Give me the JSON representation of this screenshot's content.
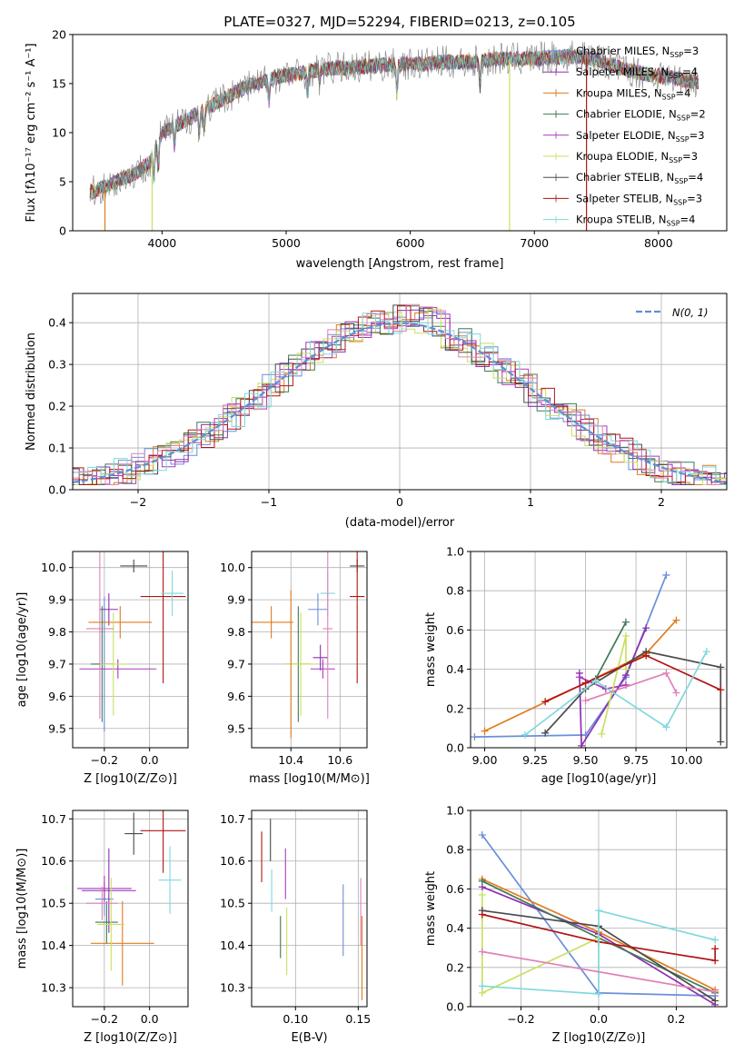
{
  "colors": {
    "chabrier_miles": "#6a8fd8",
    "salpeter_miles": "#8e2fb4",
    "kroupa_miles": "#e07b1f",
    "chabrier_elodie": "#3f7a55",
    "salpeter_elodie": "#a83ab8",
    "kroupa_elodie": "#c9e060",
    "chabrier_stelib": "#4a4a4a",
    "salpeter_stelib": "#b01515",
    "kroupa_stelib": "#7fd8dc",
    "pink": "#e080b8",
    "gaussian": "#5b8fd8",
    "grid": "#b0b0b0"
  },
  "chart_data": [
    {
      "id": "spectrum",
      "type": "line",
      "title": "PLATE=0327, MJD=52294, FIBERID=0213, z=0.105",
      "xlabel": "wavelength [Angstrom, rest frame]",
      "ylabel": "Flux [fλ10⁻¹⁷ erg cm⁻² s⁻¹ A⁻¹]",
      "xlim": [
        3280,
        8550
      ],
      "ylim": [
        0,
        20
      ],
      "xticks": [
        4000,
        5000,
        6000,
        7000,
        8000
      ],
      "yticks": [
        0,
        5,
        10,
        15,
        20
      ],
      "grid": false,
      "legend_position": "top-right",
      "legend": [
        {
          "label": "Chabrier MILES, N",
          "sub": "SSP",
          "suffix": "=3",
          "marker": "|",
          "key": "chabrier_miles"
        },
        {
          "label": "Salpeter MILES, N",
          "sub": "SSP",
          "suffix": "=4",
          "marker": "|",
          "key": "salpeter_miles"
        },
        {
          "label": "Kroupa MILES, N",
          "sub": "SSP",
          "suffix": "=4",
          "marker": "+",
          "key": "kroupa_miles"
        },
        {
          "label": "Chabrier ELODIE, N",
          "sub": "SSP",
          "suffix": "=2",
          "marker": "+",
          "key": "chabrier_elodie"
        },
        {
          "label": "Salpeter ELODIE, N",
          "sub": "SSP",
          "suffix": "=3",
          "marker": "|",
          "key": "salpeter_elodie"
        },
        {
          "label": "Kroupa ELODIE, N",
          "sub": "SSP",
          "suffix": "=3",
          "marker": "|",
          "key": "kroupa_elodie"
        },
        {
          "label": "Chabrier STELIB, N",
          "sub": "SSP",
          "suffix": "=4",
          "marker": "|",
          "key": "chabrier_stelib"
        },
        {
          "label": "Salpeter STELIB, N",
          "sub": "SSP",
          "suffix": "=3",
          "marker": "|",
          "key": "salpeter_stelib"
        },
        {
          "label": "Kroupa STELIB, N",
          "sub": "SSP",
          "suffix": "=4",
          "marker": "|",
          "key": "kroupa_stelib"
        }
      ],
      "continuum": {
        "x": [
          3450,
          3600,
          3800,
          3900,
          4000,
          4150,
          4300,
          4500,
          4700,
          4900,
          5100,
          5300,
          5500,
          5700,
          5900,
          6100,
          6300,
          6500,
          6700,
          6900,
          7100,
          7300,
          7500,
          7700,
          7900,
          8100,
          8300
        ],
        "y": [
          4.0,
          4.8,
          6.0,
          7.0,
          10.0,
          11.0,
          12.0,
          13.5,
          14.8,
          15.6,
          16.0,
          16.5,
          16.6,
          16.8,
          17.0,
          17.0,
          17.2,
          17.2,
          17.5,
          17.5,
          17.6,
          17.8,
          17.5,
          16.5,
          16.0,
          15.6,
          15.2
        ]
      },
      "data_gaps": [
        {
          "x": 3540,
          "key": "kroupa_miles"
        },
        {
          "x": 3920,
          "key": "kroupa_elodie"
        },
        {
          "x": 6800,
          "key": "kroupa_elodie"
        },
        {
          "x": 7420,
          "key": "salpeter_stelib"
        }
      ]
    },
    {
      "id": "residuals",
      "type": "step",
      "xlabel": "(data-model)/error",
      "ylabel": "Normed distribution",
      "xlim": [
        -2.5,
        2.5
      ],
      "ylim": [
        0,
        0.47
      ],
      "xticks": [
        -2,
        -1,
        0,
        1,
        2
      ],
      "yticks": [
        0.0,
        0.1,
        0.2,
        0.3,
        0.4
      ],
      "grid": true,
      "legend_position": "top-right",
      "gaussian_label": "N(0, 1)",
      "bin_width": 0.1
    },
    {
      "id": "age_vs_Z",
      "type": "errorbar",
      "xlabel": "Z [log10(Z/Z⊙)]",
      "ylabel": "age  [log10(age/yr)]",
      "xlim": [
        -0.34,
        0.17
      ],
      "ylim": [
        9.44,
        10.05
      ],
      "xticks": [
        -0.2,
        0.0
      ],
      "yticks": [
        9.5,
        9.6,
        9.7,
        9.8,
        9.9,
        10.0
      ],
      "grid": true,
      "points": [
        {
          "key": "chabrier_miles",
          "x": -0.2,
          "xerr": 0.04,
          "y": 9.7,
          "yerr": 0.21
        },
        {
          "key": "salpeter_miles",
          "x": -0.18,
          "xerr": 0.04,
          "y": 9.87,
          "yerr": 0.05
        },
        {
          "key": "kroupa_miles",
          "x": -0.13,
          "xerr": 0.14,
          "y": 9.83,
          "yerr": 0.05
        },
        {
          "key": "chabrier_elodie",
          "x": -0.21,
          "xerr": 0.05,
          "y": 9.7,
          "yerr": 0.18
        },
        {
          "key": "salpeter_elodie",
          "x": -0.14,
          "xerr": 0.17,
          "y": 9.685,
          "yerr": 0.03
        },
        {
          "key": "kroupa_elodie",
          "x": -0.16,
          "xerr": 0.06,
          "y": 9.7,
          "yerr": 0.16
        },
        {
          "key": "chabrier_stelib",
          "x": -0.07,
          "xerr": 0.06,
          "y": 10.005,
          "yerr": 0.02
        },
        {
          "key": "salpeter_stelib",
          "x": 0.06,
          "xerr": 0.1,
          "y": 9.91,
          "yerr": 0.27
        },
        {
          "key": "kroupa_stelib",
          "x": 0.1,
          "xerr": 0.05,
          "y": 9.92,
          "yerr": 0.07
        },
        {
          "key": "pink",
          "x": -0.22,
          "xerr": 0.06,
          "y": 9.81,
          "yerr": 0.28
        }
      ]
    },
    {
      "id": "age_vs_mass",
      "type": "errorbar",
      "xlabel": "mass [log10(M/M⊙)]",
      "ylabel": "",
      "xlim": [
        10.24,
        10.71
      ],
      "ylim": [
        9.44,
        10.05
      ],
      "xticks": [
        10.4,
        10.6
      ],
      "yticks": [
        9.5,
        9.6,
        9.7,
        9.8,
        9.9,
        10.0
      ],
      "grid": true,
      "points": [
        {
          "key": "chabrier_miles",
          "x": 10.51,
          "xerr": 0.04,
          "y": 9.87,
          "yerr": 0.05
        },
        {
          "key": "salpeter_miles",
          "x": 10.52,
          "xerr": 0.03,
          "y": 9.72,
          "yerr": 0.04
        },
        {
          "key": "kroupa_miles",
          "x": 10.32,
          "xerr": 0.09,
          "y": 9.83,
          "yerr": 0.05
        },
        {
          "key": "chabrier_elodie",
          "x": 10.43,
          "xerr": 0.05,
          "y": 9.7,
          "yerr": 0.18
        },
        {
          "key": "salpeter_elodie",
          "x": 10.53,
          "xerr": 0.05,
          "y": 9.685,
          "yerr": 0.03
        },
        {
          "key": "kroupa_elodie",
          "x": 10.44,
          "xerr": 0.06,
          "y": 9.7,
          "yerr": 0.16
        },
        {
          "key": "chabrier_stelib",
          "x": 10.67,
          "xerr": 0.03,
          "y": 10.005,
          "yerr": 0.02
        },
        {
          "key": "salpeter_stelib",
          "x": 10.67,
          "xerr": 0.03,
          "y": 9.91,
          "yerr": 0.27
        },
        {
          "key": "kroupa_stelib",
          "x": 10.55,
          "xerr": 0.03,
          "y": 9.92,
          "yerr": 0.07
        },
        {
          "key": "pink",
          "x": 10.55,
          "xerr": 0.02,
          "y": 9.81,
          "yerr": 0.28
        },
        {
          "key": "kroupa_miles",
          "x": 10.4,
          "xerr": 0.0,
          "y": 9.7,
          "yerr": 0.23
        }
      ]
    },
    {
      "id": "weight_vs_age",
      "type": "line",
      "xlabel": "age  [log10(age/yr)]",
      "ylabel": "mass weight",
      "xlim": [
        8.93,
        10.2
      ],
      "ylim": [
        0,
        1.0
      ],
      "xticks": [
        9.0,
        9.25,
        9.5,
        9.75,
        10.0
      ],
      "xticklabels": [
        "9.00",
        "9.25",
        "9.50",
        "9.75",
        "10.00"
      ],
      "yticks": [
        0.0,
        0.2,
        0.4,
        0.6,
        0.8,
        1.0
      ],
      "grid": true,
      "series": [
        {
          "key": "chabrier_miles",
          "x": [
            8.95,
            9.5,
            9.7,
            9.9
          ],
          "y": [
            0.055,
            0.065,
            0.36,
            0.88
          ]
        },
        {
          "key": "salpeter_miles",
          "x": [
            9.47,
            9.48,
            9.7,
            9.8
          ],
          "y": [
            0.38,
            0.01,
            0.37,
            0.61
          ]
        },
        {
          "key": "kroupa_miles",
          "x": [
            9.0,
            9.5,
            9.8,
            9.95
          ],
          "y": [
            0.085,
            0.33,
            0.48,
            0.65
          ]
        },
        {
          "key": "chabrier_elodie",
          "x": [
            9.55,
            9.7
          ],
          "y": [
            0.35,
            0.64
          ]
        },
        {
          "key": "salpeter_elodie",
          "x": [
            9.47,
            9.6,
            9.7
          ],
          "y": [
            0.36,
            0.3,
            0.32
          ]
        },
        {
          "key": "kroupa_elodie",
          "x": [
            9.58,
            9.7,
            9.7
          ],
          "y": [
            0.07,
            0.57,
            0.4
          ]
        },
        {
          "key": "chabrier_stelib",
          "x": [
            9.3,
            9.5,
            9.8,
            10.17,
            10.17
          ],
          "y": [
            0.075,
            0.3,
            0.49,
            0.41,
            0.03
          ]
        },
        {
          "key": "salpeter_stelib",
          "x": [
            9.3,
            9.5,
            9.8,
            10.17
          ],
          "y": [
            0.235,
            0.33,
            0.47,
            0.295
          ]
        },
        {
          "key": "kroupa_stelib",
          "x": [
            9.2,
            9.55,
            9.9,
            10.1
          ],
          "y": [
            0.065,
            0.34,
            0.105,
            0.49
          ]
        },
        {
          "key": "pink",
          "x": [
            9.5,
            9.9,
            9.95
          ],
          "y": [
            0.24,
            0.38,
            0.28
          ]
        }
      ]
    },
    {
      "id": "mass_vs_Z",
      "type": "errorbar",
      "xlabel": "Z [log10(Z/Z⊙)]",
      "ylabel": "mass [log10(M/M⊙)]",
      "xlim": [
        -0.34,
        0.17
      ],
      "ylim": [
        10.255,
        10.72
      ],
      "xticks": [
        -0.2,
        0.0
      ],
      "yticks": [
        10.3,
        10.4,
        10.5,
        10.6,
        10.7
      ],
      "grid": true,
      "points": [
        {
          "key": "chabrier_miles",
          "x": -0.2,
          "xerr": 0.04,
          "y": 10.51,
          "yerr": 0.04
        },
        {
          "key": "salpeter_miles",
          "x": -0.18,
          "xerr": 0.12,
          "y": 10.53,
          "yerr": 0.1
        },
        {
          "key": "kroupa_miles",
          "x": -0.12,
          "xerr": 0.14,
          "y": 10.405,
          "yerr": 0.1
        },
        {
          "key": "chabrier_elodie",
          "x": -0.19,
          "xerr": 0.05,
          "y": 10.455,
          "yerr": 0.05
        },
        {
          "key": "salpeter_elodie",
          "x": -0.2,
          "xerr": 0.12,
          "y": 10.535,
          "yerr": 0.03
        },
        {
          "key": "kroupa_elodie",
          "x": -0.17,
          "xerr": 0.06,
          "y": 10.45,
          "yerr": 0.11
        },
        {
          "key": "chabrier_stelib",
          "x": -0.07,
          "xerr": 0.04,
          "y": 10.665,
          "yerr": 0.05
        },
        {
          "key": "salpeter_stelib",
          "x": 0.06,
          "xerr": 0.1,
          "y": 10.672,
          "yerr": 0.1
        },
        {
          "key": "kroupa_stelib",
          "x": 0.09,
          "xerr": 0.05,
          "y": 10.555,
          "yerr": 0.08
        },
        {
          "key": "pink",
          "x": -0.21,
          "xerr": 0.07,
          "y": 10.5,
          "yerr": 0.04
        }
      ]
    },
    {
      "id": "mass_vs_EBV",
      "type": "errorbar",
      "xlabel": "E(B-V)",
      "ylabel": "",
      "xlim": [
        0.065,
        0.157
      ],
      "ylim": [
        10.255,
        10.72
      ],
      "xticks": [
        0.1,
        0.15
      ],
      "xticklabels": [
        "0.10",
        "0.15"
      ],
      "yticks": [
        10.3,
        10.4,
        10.5,
        10.6,
        10.7
      ],
      "grid": true,
      "points": [
        {
          "key": "salpeter_stelib",
          "x": 0.073,
          "xerr": 0.0,
          "y": 10.61,
          "yerr": 0.06
        },
        {
          "key": "chabrier_stelib",
          "x": 0.08,
          "xerr": 0.0,
          "y": 10.65,
          "yerr": 0.05
        },
        {
          "key": "kroupa_stelib",
          "x": 0.081,
          "xerr": 0.0,
          "y": 10.53,
          "yerr": 0.05
        },
        {
          "key": "chabrier_elodie",
          "x": 0.088,
          "xerr": 0.0,
          "y": 10.42,
          "yerr": 0.05
        },
        {
          "key": "salpeter_elodie",
          "x": 0.092,
          "xerr": 0.0,
          "y": 10.57,
          "yerr": 0.06
        },
        {
          "key": "kroupa_elodie",
          "x": 0.093,
          "xerr": 0.0,
          "y": 10.41,
          "yerr": 0.08
        },
        {
          "key": "chabrier_miles",
          "x": 0.138,
          "xerr": 0.0,
          "y": 10.46,
          "yerr": 0.085
        },
        {
          "key": "pink",
          "x": 0.152,
          "xerr": 0.0,
          "y": 10.48,
          "yerr": 0.08
        },
        {
          "key": "kroupa_miles",
          "x": 0.153,
          "xerr": 0.0,
          "y": 10.37,
          "yerr": 0.1
        }
      ]
    },
    {
      "id": "weight_vs_Z",
      "type": "line",
      "xlabel": "Z [log10(Z/Z⊙)]",
      "ylabel": "mass weight",
      "xlim": [
        -0.33,
        0.33
      ],
      "ylim": [
        0,
        1.0
      ],
      "xticks": [
        -0.2,
        0.0,
        0.2
      ],
      "yticks": [
        0.0,
        0.2,
        0.4,
        0.6,
        0.8,
        1.0
      ],
      "grid": true,
      "series": [
        {
          "key": "chabrier_miles",
          "x": [
            -0.3,
            0.0,
            0.3
          ],
          "y": [
            0.875,
            0.07,
            0.055
          ]
        },
        {
          "key": "salpeter_miles",
          "x": [
            -0.3,
            0.0,
            0.3
          ],
          "y": [
            0.61,
            0.37,
            0.01
          ]
        },
        {
          "key": "kroupa_miles",
          "x": [
            -0.3,
            0.0,
            0.3
          ],
          "y": [
            0.65,
            0.38,
            0.085
          ]
        },
        {
          "key": "chabrier_elodie",
          "x": [
            -0.3,
            0.0,
            0.3
          ],
          "y": [
            0.64,
            0.35,
            0.07
          ]
        },
        {
          "key": "kroupa_elodie",
          "x": [
            -0.3,
            -0.3,
            0.0
          ],
          "y": [
            0.57,
            0.07,
            0.35
          ]
        },
        {
          "key": "chabrier_stelib",
          "x": [
            -0.3,
            0.0,
            0.3
          ],
          "y": [
            0.49,
            0.41,
            0.03
          ]
        },
        {
          "key": "salpeter_stelib",
          "x": [
            -0.3,
            0.0,
            0.3,
            0.3
          ],
          "y": [
            0.47,
            0.33,
            0.235,
            0.295
          ]
        },
        {
          "key": "kroupa_stelib",
          "x": [
            -0.3,
            0.0,
            0.0,
            0.3
          ],
          "y": [
            0.105,
            0.065,
            0.49,
            0.34
          ]
        },
        {
          "key": "pink",
          "x": [
            -0.3,
            0.3
          ],
          "y": [
            0.28,
            0.075
          ]
        }
      ]
    }
  ]
}
